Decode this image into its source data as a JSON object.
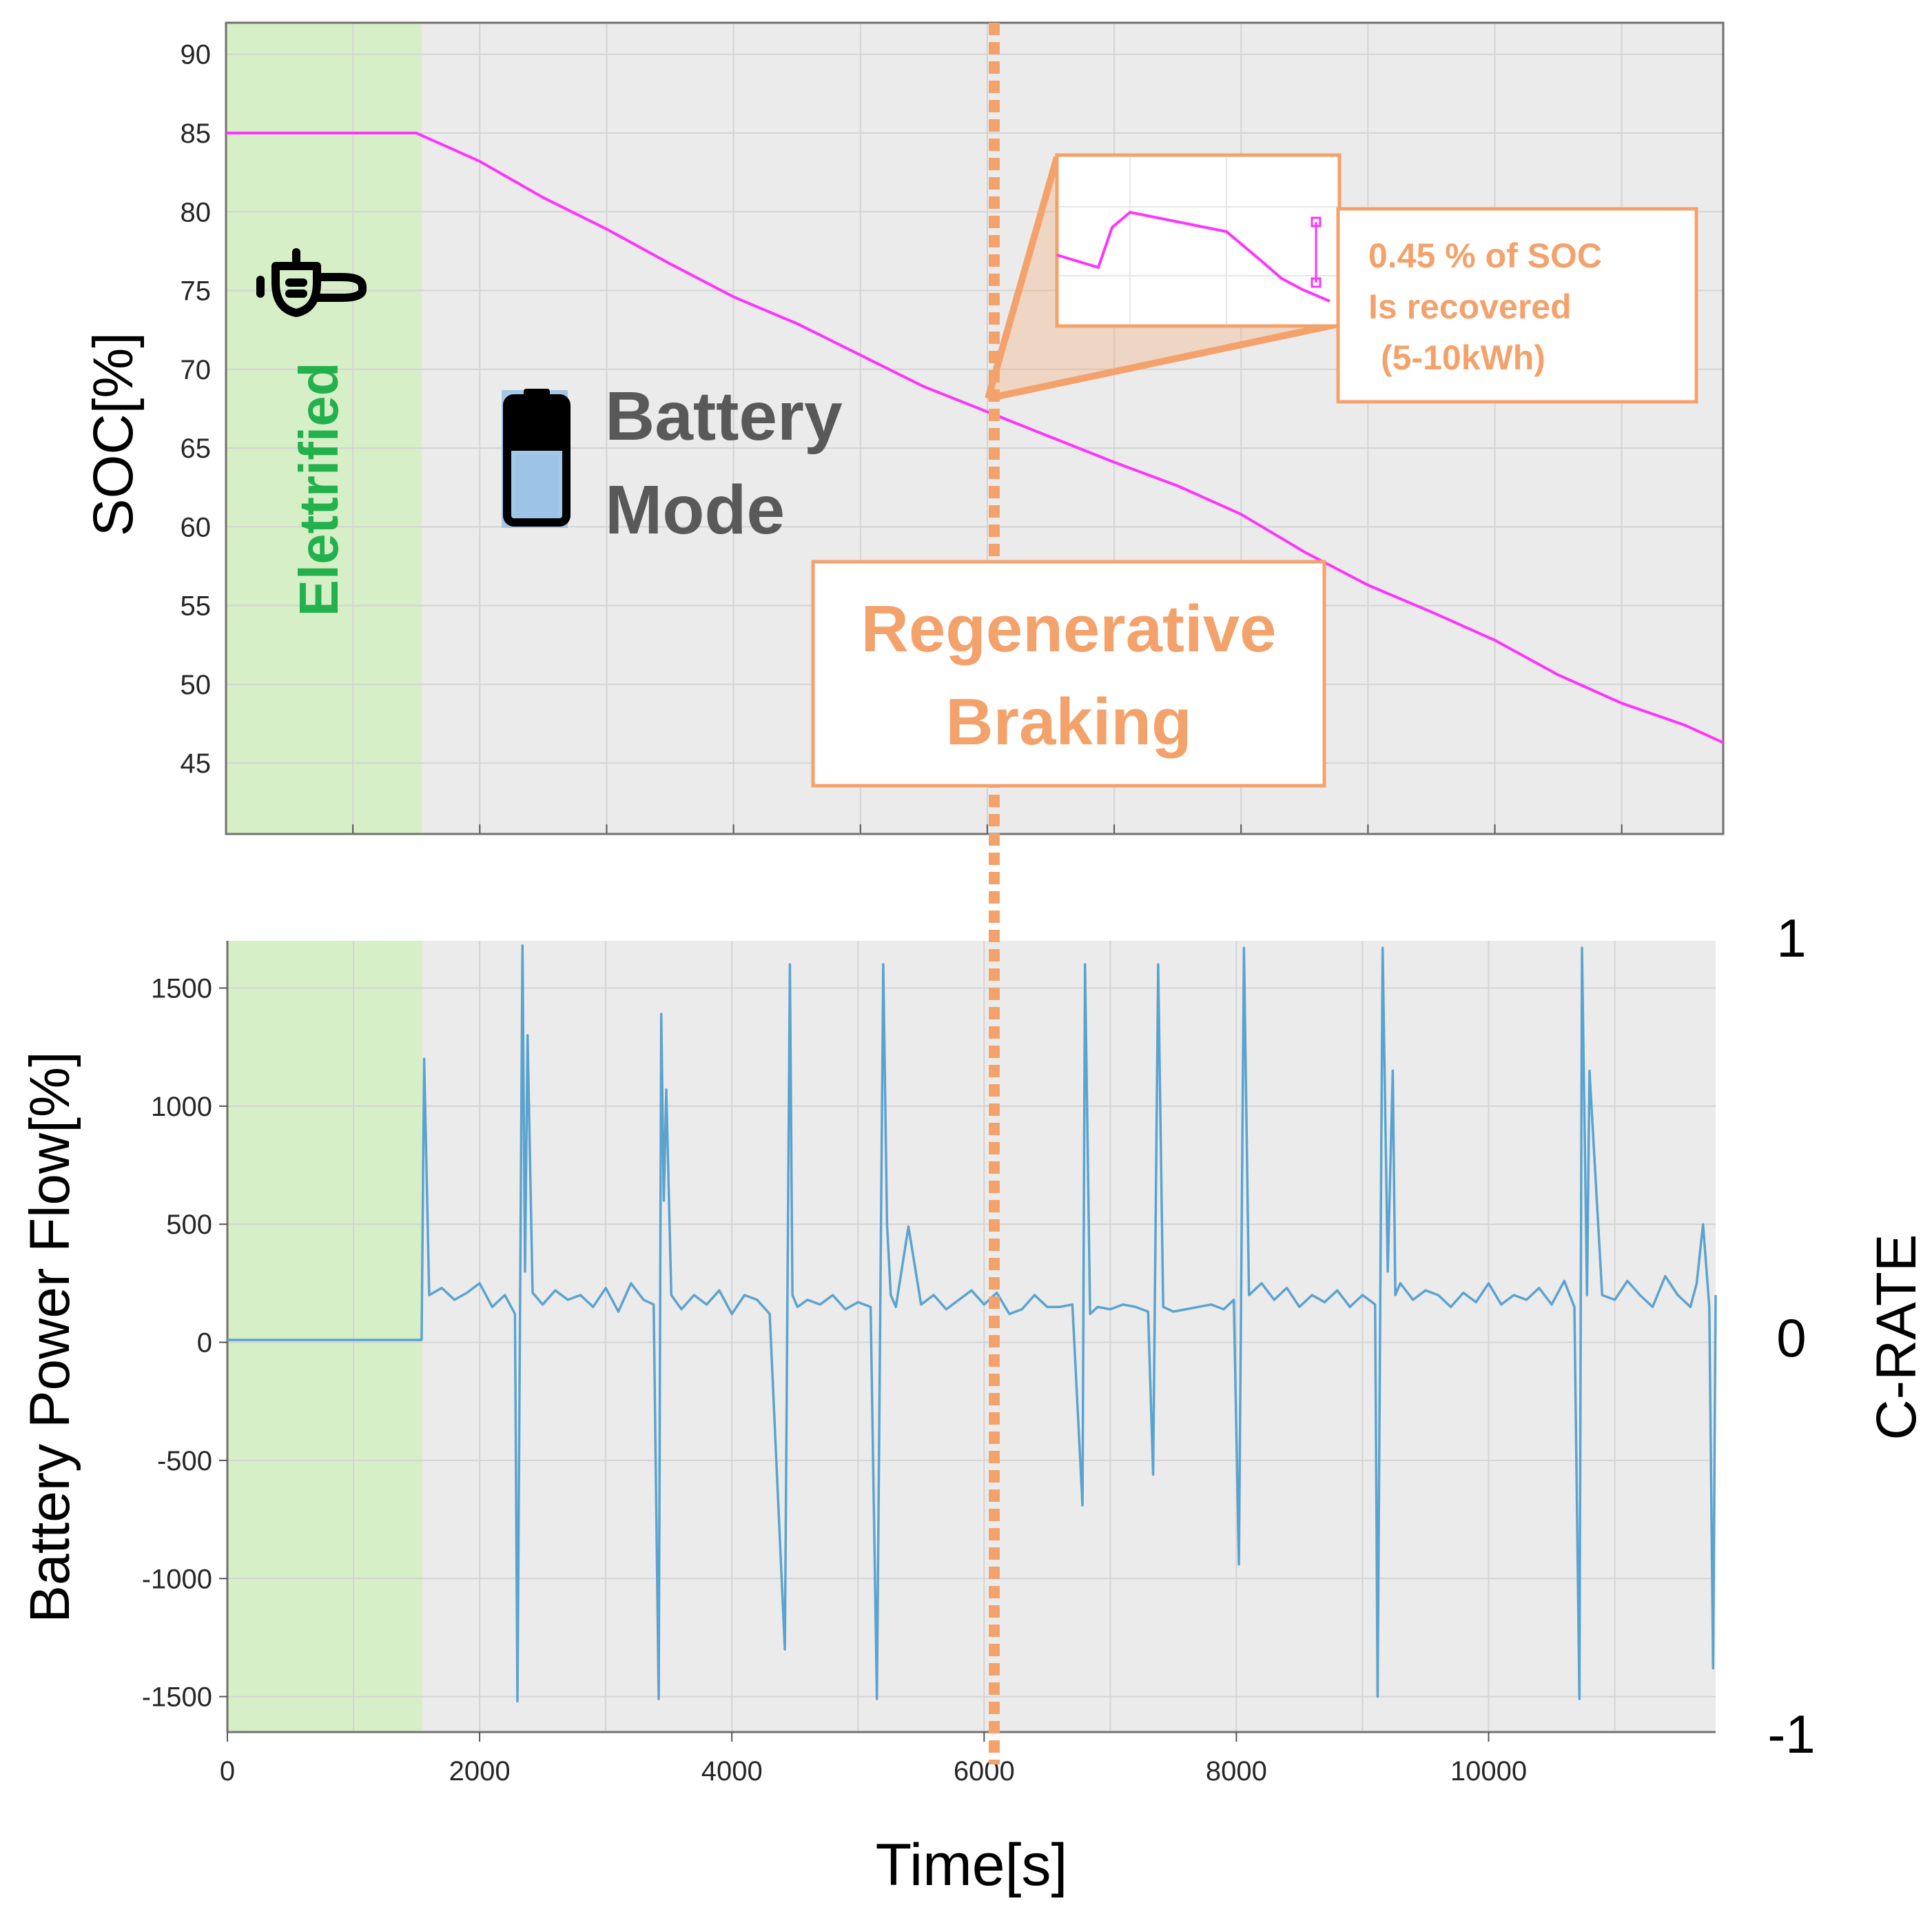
{
  "colors": {
    "soc_line": "#FF33FF",
    "power_line": "#5BA3CF",
    "highlight": "#F4A26B",
    "elettrified_fill": "#D7EFC7",
    "plot_bg": "#EBEBEB",
    "elettrified_text": "#22B14C"
  },
  "chart_data": [
    {
      "type": "line",
      "ylabel": "SOC[%]",
      "ylim": [
        40.5,
        92
      ],
      "y_ticks": [
        "90",
        "85",
        "80",
        "75",
        "70",
        "65",
        "60",
        "55",
        "50",
        "45"
      ],
      "xlim": [
        0,
        11800
      ],
      "grid": true,
      "series": [
        {
          "name": "SOC",
          "x": [
            0,
            1500,
            2000,
            2500,
            3000,
            3500,
            4000,
            4500,
            5000,
            5500,
            6000,
            6500,
            7000,
            7500,
            8000,
            8500,
            9000,
            9500,
            10000,
            10500,
            11000,
            11500,
            11800
          ],
          "y": [
            85,
            85,
            83.2,
            80.9,
            78.9,
            76.7,
            74.6,
            72.9,
            70.9,
            68.9,
            67.3,
            65.7,
            64.1,
            62.6,
            60.8,
            58.4,
            56.3,
            54.6,
            52.8,
            50.6,
            48.8,
            47.4,
            46.3
          ]
        }
      ]
    },
    {
      "type": "line",
      "ylabel": "Battery Power Flow[%]",
      "y2label": "C-RATE",
      "ylim": [
        -1650,
        1700
      ],
      "y_ticks": [
        "1500",
        "1000",
        "500",
        "0",
        "-500",
        "-1000",
        "-1500"
      ],
      "y2_ticks": [
        "1",
        "0",
        "-1"
      ],
      "x_ticks": [
        "0",
        "2000",
        "4000",
        "6000",
        "8000",
        "10000"
      ],
      "xlabel": "Time[s]",
      "xlim": [
        0,
        11800
      ],
      "grid": true,
      "series": [
        {
          "name": "Battery Power Flow",
          "x": [
            0,
            1520,
            1540,
            1560,
            1600,
            1700,
            1800,
            1900,
            2000,
            2100,
            2200,
            2280,
            2300,
            2340,
            2360,
            2380,
            2420,
            2500,
            2600,
            2700,
            2800,
            2900,
            3000,
            3100,
            3200,
            3300,
            3380,
            3420,
            3440,
            3460,
            3480,
            3520,
            3600,
            3700,
            3800,
            3900,
            4000,
            4100,
            4200,
            4300,
            4420,
            4460,
            4480,
            4520,
            4600,
            4700,
            4800,
            4900,
            5000,
            5100,
            5150,
            5200,
            5230,
            5260,
            5300,
            5400,
            5500,
            5600,
            5700,
            5800,
            5900,
            6000,
            6100,
            6200,
            6300,
            6400,
            6500,
            6600,
            6700,
            6780,
            6800,
            6840,
            6900,
            7000,
            7100,
            7200,
            7300,
            7340,
            7380,
            7420,
            7500,
            7600,
            7700,
            7800,
            7900,
            7980,
            8020,
            8060,
            8100,
            8200,
            8300,
            8400,
            8500,
            8600,
            8700,
            8800,
            8900,
            9000,
            9100,
            9120,
            9160,
            9200,
            9240,
            9260,
            9300,
            9400,
            9500,
            9600,
            9700,
            9800,
            9900,
            10000,
            10100,
            10200,
            10300,
            10400,
            10500,
            10600,
            10680,
            10720,
            10740,
            10780,
            10800,
            10900,
            11000,
            11100,
            11200,
            11300,
            11400,
            11500,
            11600,
            11650,
            11700,
            11750,
            11780,
            11800
          ],
          "y": [
            10,
            10,
            10,
            1200,
            200,
            230,
            180,
            210,
            250,
            150,
            200,
            120,
            -1520,
            1680,
            300,
            1300,
            210,
            160,
            220,
            180,
            200,
            150,
            230,
            130,
            250,
            180,
            160,
            -1510,
            1390,
            600,
            1070,
            200,
            140,
            200,
            160,
            220,
            120,
            200,
            180,
            120,
            -1300,
            1600,
            200,
            150,
            180,
            160,
            200,
            140,
            170,
            150,
            -1510,
            1600,
            500,
            200,
            150,
            490,
            160,
            200,
            140,
            180,
            220,
            160,
            210,
            120,
            140,
            200,
            150,
            150,
            160,
            -690,
            1600,
            120,
            150,
            140,
            160,
            150,
            130,
            -560,
            1600,
            150,
            130,
            140,
            150,
            160,
            140,
            180,
            -940,
            1670,
            200,
            250,
            180,
            230,
            150,
            200,
            170,
            220,
            150,
            200,
            160,
            -1500,
            1670,
            300,
            1150,
            200,
            250,
            180,
            220,
            200,
            150,
            210,
            170,
            250,
            160,
            200,
            180,
            230,
            160,
            260,
            150,
            -1510,
            1670,
            200,
            1150,
            200,
            180,
            260,
            200,
            150,
            280,
            200,
            150,
            250,
            500,
            150,
            -1380,
            200
          ]
        }
      ]
    }
  ],
  "annotations": {
    "elettrified_label": "Elettrified",
    "battery_mode_line1": "Battery",
    "battery_mode_line2": "Mode",
    "regenerative_line1": "Regenerative",
    "regenerative_line2": "Braking",
    "soc_recovered_line1": "0.45 % of SOC",
    "soc_recovered_line2": "Is recovered",
    "soc_recovered_line3": "(5-10kWh)",
    "plug_icon": "plug-icon",
    "battery_icon": "battery-icon"
  }
}
